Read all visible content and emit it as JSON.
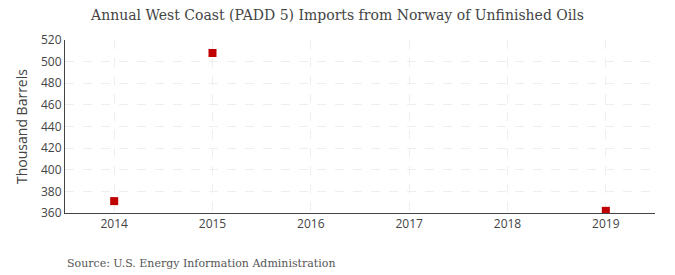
{
  "chart_data": {
    "type": "scatter",
    "title": "Annual West Coast (PADD 5) Imports from Norway of Unfinished Oils",
    "ylabel": "Thousand Barrels",
    "annotations": [
      "Source: U.S. Energy Information Administration"
    ],
    "x": [
      2014,
      2015,
      2019
    ],
    "values": [
      371,
      508,
      362
    ],
    "color": "#c00000",
    "marker": "square",
    "xlim": [
      2013.5,
      2019.5
    ],
    "xticks": [
      2014,
      2015,
      2016,
      2017,
      2018,
      2019
    ],
    "ylim": [
      360,
      520
    ],
    "yticks": [
      360,
      380,
      400,
      420,
      440,
      460,
      480,
      500,
      520
    ],
    "grid": true
  }
}
